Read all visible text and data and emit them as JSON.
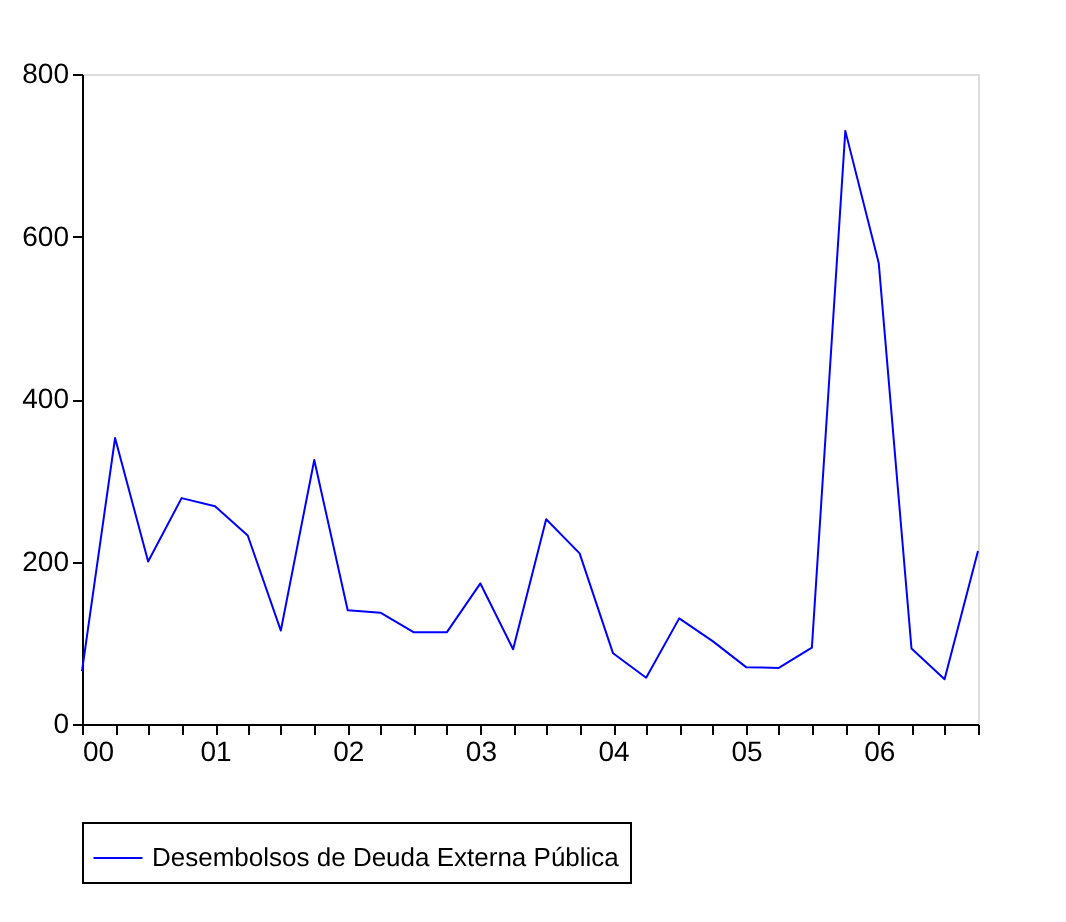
{
  "chart_data": {
    "type": "line",
    "x": [
      "2000-01",
      "2000-04",
      "2000-07",
      "2000-10",
      "2001-01",
      "2001-04",
      "2001-07",
      "2001-10",
      "2002-01",
      "2002-04",
      "2002-07",
      "2002-10",
      "2003-01",
      "2003-04",
      "2003-07",
      "2003-10",
      "2004-01",
      "2004-04",
      "2004-07",
      "2004-10",
      "2005-01",
      "2005-04",
      "2005-07",
      "2005-10",
      "2006-01",
      "2006-04",
      "2006-07",
      "2006-10"
    ],
    "series": [
      {
        "name": "Desembolsos de Deuda Externa Pública",
        "color": "#0000ff",
        "values": [
          65,
          352,
          200,
          278,
          268,
          232,
          115,
          325,
          140,
          137,
          113,
          113,
          173,
          92,
          252,
          210,
          87,
          57,
          130,
          102,
          70,
          69,
          94,
          730,
          567,
          93,
          55,
          213
        ]
      }
    ],
    "xlim": [
      "2000-01",
      "2006-10"
    ],
    "xticks": [
      {
        "value": "2000-01",
        "label": "00"
      },
      {
        "value": "2000-04",
        "label": null
      },
      {
        "value": "2000-07",
        "label": null
      },
      {
        "value": "2000-10",
        "label": null
      },
      {
        "value": "2001-01",
        "label": "01"
      },
      {
        "value": "2001-04",
        "label": null
      },
      {
        "value": "2001-07",
        "label": null
      },
      {
        "value": "2001-10",
        "label": null
      },
      {
        "value": "2002-01",
        "label": "02"
      },
      {
        "value": "2002-04",
        "label": null
      },
      {
        "value": "2002-07",
        "label": null
      },
      {
        "value": "2002-10",
        "label": null
      },
      {
        "value": "2003-01",
        "label": "03"
      },
      {
        "value": "2003-04",
        "label": null
      },
      {
        "value": "2003-07",
        "label": null
      },
      {
        "value": "2003-10",
        "label": null
      },
      {
        "value": "2004-01",
        "label": "04"
      },
      {
        "value": "2004-04",
        "label": null
      },
      {
        "value": "2004-07",
        "label": null
      },
      {
        "value": "2004-10",
        "label": null
      },
      {
        "value": "2005-01",
        "label": "05"
      },
      {
        "value": "2005-04",
        "label": null
      },
      {
        "value": "2005-07",
        "label": null
      },
      {
        "value": "2005-10",
        "label": null
      },
      {
        "value": "2006-01",
        "label": "06"
      },
      {
        "value": "2006-04",
        "label": null
      },
      {
        "value": "2006-07",
        "label": null
      },
      {
        "value": "2006-10",
        "label": null
      }
    ],
    "ylim": [
      0,
      800
    ],
    "yticks": [
      0,
      200,
      400,
      600,
      800
    ],
    "grid": false,
    "legend": "bottom",
    "marker": "none",
    "line_style": "solid"
  }
}
